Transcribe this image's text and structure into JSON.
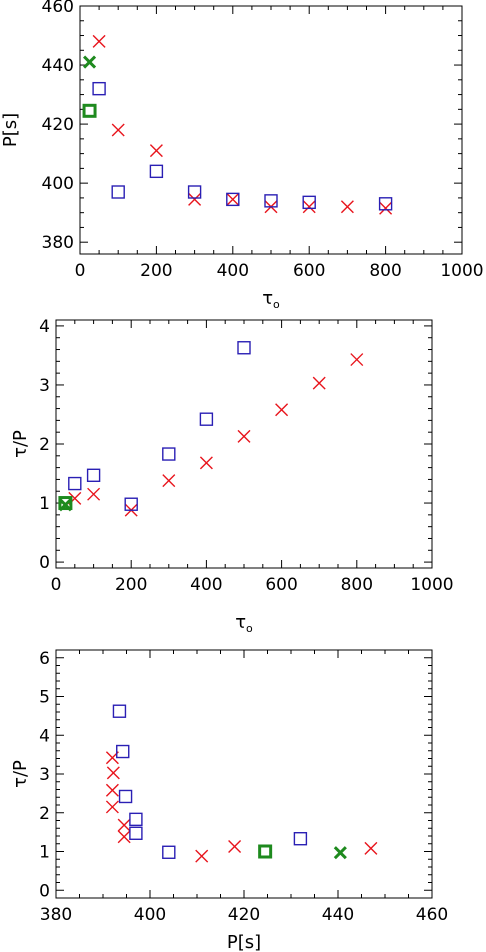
{
  "chart_data": [
    {
      "type": "scatter",
      "xlabel": "τ",
      "xlabel_sub": "o",
      "ylabel": "P[s]",
      "xlim": [
        0,
        1000
      ],
      "ylim": [
        376,
        460
      ],
      "xticks": [
        "0",
        "200",
        "400",
        "600",
        "800",
        "1000"
      ],
      "yticks": [
        "380",
        "400",
        "420",
        "440",
        "460"
      ],
      "series": [
        {
          "marker": "x",
          "color": "#e8141c",
          "points": [
            [
              50,
              448
            ],
            [
              100,
              418
            ],
            [
              200,
              411
            ],
            [
              300,
              394.5
            ],
            [
              400,
              394.5
            ],
            [
              500,
              392
            ],
            [
              600,
              392
            ],
            [
              700,
              392
            ],
            [
              800,
              391.5
            ]
          ]
        },
        {
          "marker": "square",
          "color": "#2a1fb4",
          "points": [
            [
              50,
              432
            ],
            [
              100,
              397
            ],
            [
              200,
              404
            ],
            [
              300,
              397
            ],
            [
              400,
              394.5
            ],
            [
              500,
              394
            ],
            [
              600,
              393.5
            ],
            [
              800,
              393
            ]
          ]
        },
        {
          "marker": "x-bold",
          "color": "#1e8a1e",
          "points": [
            [
              25,
              441
            ]
          ]
        },
        {
          "marker": "square-bold",
          "color": "#1e8a1e",
          "points": [
            [
              25,
              424.5
            ]
          ]
        }
      ]
    },
    {
      "type": "scatter",
      "xlabel": "τ",
      "xlabel_sub": "o",
      "ylabel": "τ/P",
      "xlim": [
        0,
        1000
      ],
      "ylim": [
        -0.1,
        4.1
      ],
      "xticks": [
        "0",
        "200",
        "400",
        "600",
        "800",
        "1000"
      ],
      "yticks": [
        "0",
        "1",
        "2",
        "3",
        "4"
      ],
      "series": [
        {
          "marker": "x",
          "color": "#e8141c",
          "points": [
            [
              50,
              1.08
            ],
            [
              100,
              1.15
            ],
            [
              200,
              0.88
            ],
            [
              300,
              1.38
            ],
            [
              400,
              1.68
            ],
            [
              500,
              2.13
            ],
            [
              600,
              2.58
            ],
            [
              700,
              3.03
            ],
            [
              800,
              3.43
            ]
          ]
        },
        {
          "marker": "square",
          "color": "#2a1fb4",
          "points": [
            [
              50,
              1.33
            ],
            [
              100,
              1.47
            ],
            [
              200,
              0.98
            ],
            [
              300,
              1.83
            ],
            [
              400,
              2.42
            ],
            [
              500,
              3.63
            ]
          ]
        },
        {
          "marker": "x-bold",
          "color": "#1e8a1e",
          "points": [
            [
              25,
              0.97
            ]
          ]
        },
        {
          "marker": "square-bold",
          "color": "#1e8a1e",
          "points": [
            [
              25,
              1.0
            ]
          ]
        }
      ]
    },
    {
      "type": "scatter",
      "xlabel": "P[s]",
      "ylabel": "τ/P",
      "xlim": [
        380,
        460
      ],
      "ylim": [
        -0.2,
        6.2
      ],
      "xticks": [
        "380",
        "400",
        "420",
        "440",
        "460"
      ],
      "yticks": [
        "0",
        "1",
        "2",
        "3",
        "4",
        "5",
        "6"
      ],
      "series": [
        {
          "marker": "x",
          "color": "#e8141c",
          "points": [
            [
              392,
              3.42
            ],
            [
              392.2,
              3.03
            ],
            [
              392,
              2.58
            ],
            [
              392,
              2.15
            ],
            [
              394.5,
              1.68
            ],
            [
              394.5,
              1.38
            ],
            [
              411,
              0.88
            ],
            [
              418,
              1.13
            ],
            [
              447,
              1.08
            ]
          ]
        },
        {
          "marker": "square",
          "color": "#2a1fb4",
          "points": [
            [
              393.5,
              4.62
            ],
            [
              394.2,
              3.58
            ],
            [
              394.8,
              2.42
            ],
            [
              397,
              1.83
            ],
            [
              397,
              1.47
            ],
            [
              404,
              0.98
            ],
            [
              432,
              1.33
            ]
          ]
        },
        {
          "marker": "x-bold",
          "color": "#1e8a1e",
          "points": [
            [
              440.5,
              0.97
            ]
          ]
        },
        {
          "marker": "square-bold",
          "color": "#1e8a1e",
          "points": [
            [
              424.5,
              1.0
            ]
          ]
        }
      ]
    }
  ]
}
